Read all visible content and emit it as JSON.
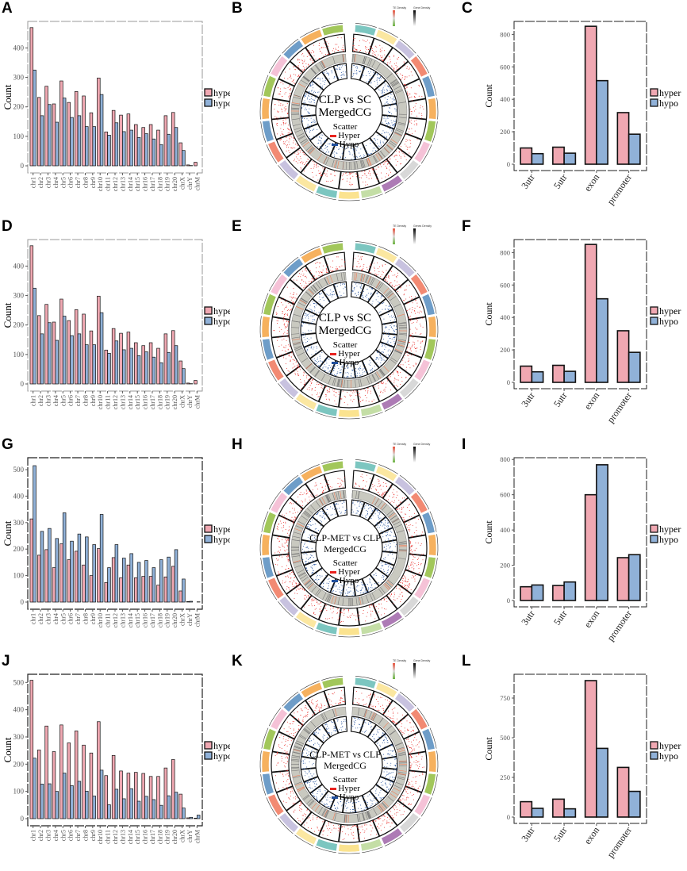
{
  "panel_labels": [
    "A",
    "B",
    "C",
    "D",
    "E",
    "F",
    "G",
    "H",
    "I",
    "J",
    "K",
    "L"
  ],
  "colors": {
    "hyper": "#f0a8b2",
    "hypo": "#90b1d8",
    "scatter_hyper": "#e8231f",
    "scatter_hypo": "#1f4e9c",
    "ideogram": [
      "#7cc6c0",
      "#fbe7a1",
      "#c8c2df",
      "#f28a73",
      "#6e9dc8",
      "#f6b15e",
      "#a2c75b",
      "#f5c2d7",
      "#d8d8d8",
      "#ad7bb5",
      "#c4dea6",
      "#fbe38f",
      "#7cc6c0",
      "#fbe7a1",
      "#c8c2df",
      "#f28a73",
      "#6e9dc8",
      "#f6b15e",
      "#a2c75b",
      "#f5c2d7",
      "#6e9dc8",
      "#f6b15e",
      "#a2c75b"
    ]
  },
  "legend": {
    "hyper": "hyper",
    "hypo": "hypo"
  },
  "ylabel": "Count",
  "circos": [
    {
      "panel": "B",
      "title_line1": "CLP vs SC",
      "title_line2": "MergedCG",
      "legend_title": "Scatter",
      "hyper": "Hyper",
      "hypo": "Hypo",
      "te_density": "TE Density",
      "gene_density": "Gene Density"
    },
    {
      "panel": "E",
      "title_line1": "CLP vs SC",
      "title_line2": "MergedCG",
      "legend_title": "Scatter",
      "hyper": "Hyper",
      "hypo": "Hypo",
      "te_density": "TE Density",
      "gene_density": "Genes Density"
    },
    {
      "panel": "H",
      "title_line1": "CLP-MET vs CLP",
      "title_line2": "MergedCG",
      "legend_title": "Scatter",
      "hyper": "Hyper",
      "hypo": "Hypo",
      "te_density": "TE Density",
      "gene_density": "Gene Density"
    },
    {
      "panel": "K",
      "title_line1": "CLP-MET vs CLP",
      "title_line2": "MergedCG",
      "legend_title": "Scatter",
      "hyper": "Hyper",
      "hypo": "Hypo",
      "te_density": "TE Density",
      "gene_density": "Gene Density"
    }
  ],
  "chart_data": [
    {
      "panel": "A",
      "type": "bar",
      "ylabel": "Count",
      "ylim": [
        0,
        490
      ],
      "yticks": [
        0,
        100,
        200,
        300,
        400
      ],
      "categories": [
        "chr1",
        "chr2",
        "chr3",
        "chr4",
        "chr5",
        "chr6",
        "chr7",
        "chr8",
        "chr9",
        "chr10",
        "chr11",
        "chr12",
        "chr13",
        "chr14",
        "chr15",
        "chr16",
        "chr17",
        "chr18",
        "chr19",
        "chr20",
        "chrX",
        "chrY",
        "chrM"
      ],
      "series": [
        {
          "name": "hyper",
          "values": [
            469,
            232,
            270,
            210,
            288,
            215,
            252,
            237,
            180,
            298,
            115,
            188,
            172,
            176,
            140,
            130,
            140,
            121,
            170,
            181,
            78,
            3,
            12
          ]
        },
        {
          "name": "hypo",
          "values": [
            325,
            170,
            208,
            148,
            230,
            164,
            170,
            133,
            133,
            242,
            104,
            146,
            116,
            121,
            96,
            109,
            91,
            72,
            107,
            130,
            52,
            1,
            0
          ]
        }
      ],
      "legend": "right",
      "grid": false
    },
    {
      "panel": "C",
      "type": "bar",
      "ylabel": "Count",
      "ylim": [
        0,
        880
      ],
      "yticks": [
        0,
        200,
        400,
        600,
        800
      ],
      "categories": [
        "3utr",
        "5utr",
        "exon",
        "promoter"
      ],
      "series": [
        {
          "name": "hyper",
          "values": [
            100,
            105,
            850,
            318
          ]
        },
        {
          "name": "hypo",
          "values": [
            65,
            68,
            515,
            185
          ]
        }
      ],
      "legend": "right",
      "grid": false
    },
    {
      "panel": "D",
      "type": "bar",
      "ylabel": "Count",
      "ylim": [
        0,
        490
      ],
      "yticks": [
        0,
        100,
        200,
        300,
        400
      ],
      "categories": [
        "chr1",
        "chr2",
        "chr3",
        "chr4",
        "chr5",
        "chr6",
        "chr7",
        "chr8",
        "chr9",
        "chr10",
        "chr11",
        "chr12",
        "chr13",
        "chr14",
        "chr15",
        "chr16",
        "chr17",
        "chr18",
        "chr19",
        "chr20",
        "chrX",
        "chrY",
        "chrM"
      ],
      "series": [
        {
          "name": "hyper",
          "values": [
            469,
            232,
            270,
            210,
            288,
            215,
            252,
            237,
            180,
            298,
            115,
            188,
            172,
            176,
            140,
            130,
            140,
            121,
            170,
            181,
            78,
            3,
            12
          ]
        },
        {
          "name": "hypo",
          "values": [
            325,
            170,
            208,
            148,
            230,
            164,
            170,
            133,
            133,
            242,
            104,
            146,
            116,
            121,
            96,
            109,
            91,
            72,
            107,
            130,
            52,
            1,
            0
          ]
        }
      ],
      "legend": "right",
      "grid": false
    },
    {
      "panel": "F",
      "type": "bar",
      "ylabel": "Count",
      "ylim": [
        0,
        880
      ],
      "yticks": [
        0,
        200,
        400,
        600,
        800
      ],
      "categories": [
        "3utr",
        "5utr",
        "exon",
        "promoter"
      ],
      "series": [
        {
          "name": "hyper",
          "values": [
            100,
            105,
            850,
            318
          ]
        },
        {
          "name": "hypo",
          "values": [
            65,
            68,
            515,
            185
          ]
        }
      ],
      "legend": "right",
      "grid": false
    },
    {
      "panel": "G",
      "type": "bar",
      "ylabel": "Count",
      "ylim": [
        0,
        545
      ],
      "yticks": [
        0,
        100,
        200,
        300,
        400,
        500
      ],
      "categories": [
        "chr1",
        "chr2",
        "chr3",
        "chr4",
        "chr5",
        "chr6",
        "chr7",
        "chr8",
        "chr9",
        "chr10",
        "chr11",
        "chr12",
        "chr13",
        "chr14",
        "chr15",
        "chr16",
        "chr17",
        "chr18",
        "chr19",
        "chr20",
        "chrX",
        "chrY",
        "chrM"
      ],
      "series": [
        {
          "name": "hyper",
          "values": [
            314,
            177,
            198,
            130,
            220,
            160,
            192,
            140,
            100,
            202,
            74,
            168,
            92,
            140,
            92,
            97,
            97,
            64,
            95,
            135,
            42,
            2,
            0
          ]
        },
        {
          "name": "hypo",
          "values": [
            515,
            267,
            278,
            240,
            337,
            230,
            257,
            246,
            217,
            331,
            130,
            217,
            166,
            183,
            150,
            157,
            130,
            160,
            170,
            198,
            87,
            3,
            1
          ]
        }
      ],
      "legend": "right",
      "grid": false
    },
    {
      "panel": "I",
      "type": "bar",
      "ylabel": "Count",
      "ylim": [
        0,
        810
      ],
      "yticks": [
        0,
        200,
        400,
        600,
        800
      ],
      "categories": [
        "3utr",
        "5utr",
        "exon",
        "promoter"
      ],
      "series": [
        {
          "name": "hyper",
          "values": [
            78,
            85,
            600,
            243
          ]
        },
        {
          "name": "hypo",
          "values": [
            88,
            105,
            770,
            260
          ]
        }
      ],
      "legend": "right",
      "grid": false
    },
    {
      "panel": "J",
      "type": "bar",
      "ylabel": "Count",
      "ylim": [
        0,
        530
      ],
      "yticks": [
        0,
        100,
        200,
        300,
        400,
        500
      ],
      "categories": [
        "chr1",
        "chr2",
        "chr3",
        "chr4",
        "chr5",
        "chr6",
        "chr7",
        "chr8",
        "chr9",
        "chr10",
        "chr11",
        "chr12",
        "chr13",
        "chr14",
        "chr15",
        "chr16",
        "chr17",
        "chr18",
        "chr19",
        "chr20",
        "chrX",
        "chrY",
        "chrM"
      ],
      "series": [
        {
          "name": "hyper",
          "values": [
            508,
            252,
            340,
            246,
            344,
            278,
            322,
            270,
            241,
            356,
            158,
            232,
            175,
            167,
            170,
            166,
            155,
            155,
            186,
            217,
            90,
            3,
            2
          ]
        },
        {
          "name": "hypo",
          "values": [
            222,
            127,
            128,
            100,
            167,
            121,
            137,
            101,
            83,
            178,
            51,
            108,
            73,
            110,
            64,
            82,
            70,
            49,
            84,
            97,
            39,
            5,
            13
          ]
        }
      ],
      "legend": "right",
      "grid": false
    },
    {
      "panel": "L",
      "type": "bar",
      "ylabel": "Count",
      "ylim": [
        0,
        900
      ],
      "yticks": [
        0,
        250,
        500,
        750
      ],
      "categories": [
        "3utr",
        "5utr",
        "exon",
        "promoter"
      ],
      "series": [
        {
          "name": "hyper",
          "values": [
            97,
            113,
            860,
            313
          ]
        },
        {
          "name": "hypo",
          "values": [
            55,
            52,
            433,
            162
          ]
        }
      ],
      "legend": "right",
      "grid": false
    }
  ]
}
